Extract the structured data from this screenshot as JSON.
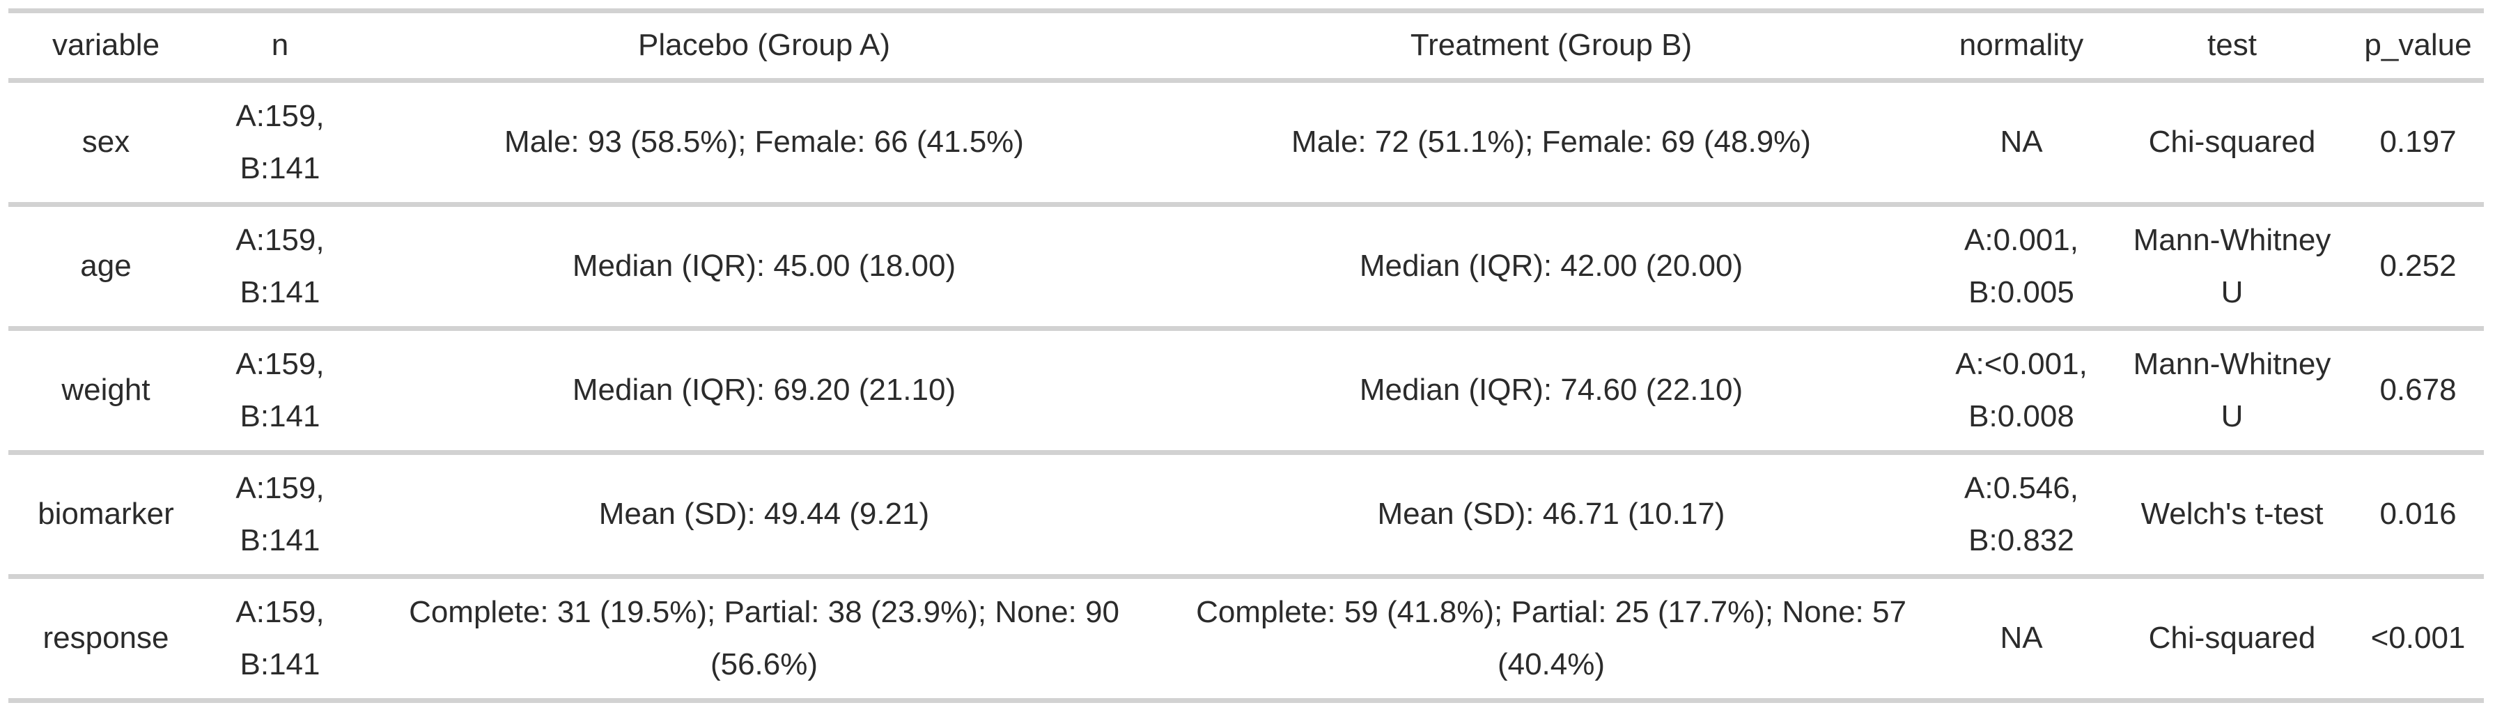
{
  "colors": {
    "text": "#2b2b2b",
    "row_border": "#d2d2d2",
    "background": "#ffffff"
  },
  "chart_data": {
    "type": "table",
    "title": "",
    "columns": [
      {
        "key": "variable",
        "label": "variable"
      },
      {
        "key": "n",
        "label": "n"
      },
      {
        "key": "placebo",
        "label": "Placebo (Group A)"
      },
      {
        "key": "treatment",
        "label": "Treatment (Group B)"
      },
      {
        "key": "normality",
        "label": "normality"
      },
      {
        "key": "test",
        "label": "test"
      },
      {
        "key": "p_value",
        "label": "p_value"
      }
    ],
    "rows": [
      {
        "variable": "sex",
        "n": "A:159,\nB:141",
        "placebo": "Male: 93 (58.5%); Female: 66 (41.5%)",
        "treatment": "Male: 72 (51.1%); Female: 69 (48.9%)",
        "normality": "NA",
        "test": "Chi-squared",
        "p_value": "0.197"
      },
      {
        "variable": "age",
        "n": "A:159,\nB:141",
        "placebo": "Median (IQR): 45.00 (18.00)",
        "treatment": "Median (IQR): 42.00 (20.00)",
        "normality": "A:0.001,\nB:0.005",
        "test": "Mann-Whitney\nU",
        "p_value": "0.252"
      },
      {
        "variable": "weight",
        "n": "A:159,\nB:141",
        "placebo": "Median (IQR): 69.20 (21.10)",
        "treatment": "Median (IQR): 74.60 (22.10)",
        "normality": "A:<0.001,\nB:0.008",
        "test": "Mann-Whitney\nU",
        "p_value": "0.678"
      },
      {
        "variable": "biomarker",
        "n": "A:159,\nB:141",
        "placebo": "Mean (SD): 49.44 (9.21)",
        "treatment": "Mean (SD): 46.71 (10.17)",
        "normality": "A:0.546,\nB:0.832",
        "test": "Welch's t-test",
        "p_value": "0.016"
      },
      {
        "variable": "response",
        "n": "A:159,\nB:141",
        "placebo": "Complete: 31 (19.5%); Partial: 38 (23.9%); None: 90\n(56.6%)",
        "treatment": "Complete: 59 (41.8%); Partial: 25 (17.7%); None: 57\n(40.4%)",
        "normality": "NA",
        "test": "Chi-squared",
        "p_value": "<0.001"
      }
    ]
  }
}
